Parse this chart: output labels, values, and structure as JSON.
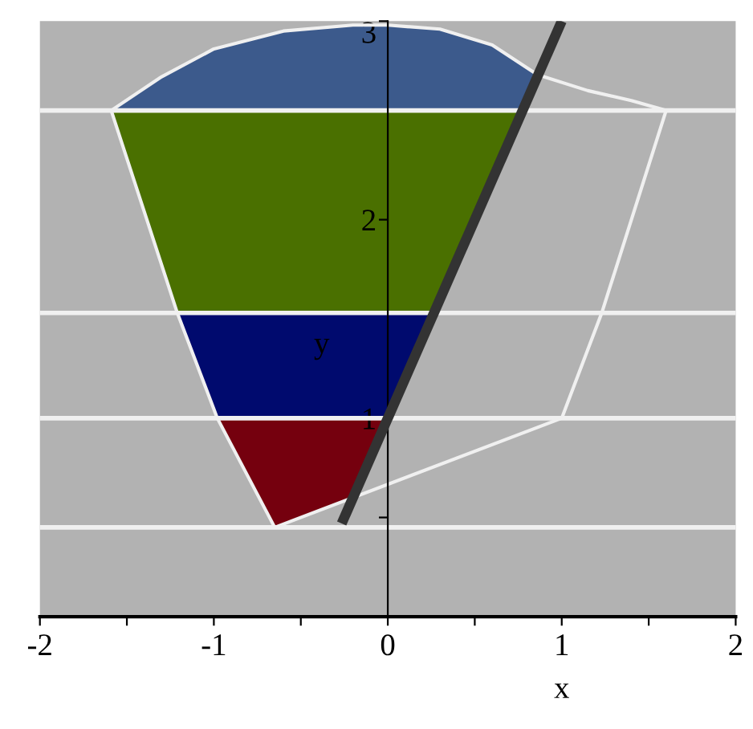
{
  "chart_data": {
    "type": "line",
    "xlabel": "x",
    "ylabel": "y",
    "xlim": [
      -2,
      2
    ],
    "ylim": [
      0,
      3
    ],
    "xticks": [
      -2,
      {
        "value": -1.5,
        "label": null
      },
      -1,
      {
        "value": -0.5,
        "label": null
      },
      0,
      {
        "value": 0.5,
        "label": null
      },
      1,
      {
        "value": 1.5,
        "label": null
      },
      2
    ],
    "yticks": [
      {
        "value": 0.5,
        "label": null
      },
      1,
      2,
      3
    ],
    "grid": false,
    "legend": false,
    "ref_lines": [
      {
        "axis": "y",
        "value": 0.45,
        "color": "#f0f0f0"
      },
      {
        "axis": "y",
        "value": 1,
        "color": "#f0f0f0"
      },
      {
        "axis": "y",
        "value": 1.53,
        "color": "#f0f0f0"
      },
      {
        "axis": "y",
        "value": 2.55,
        "color": "#f0f0f0"
      }
    ],
    "series": [
      {
        "type": "area",
        "color": "#75000e",
        "x": [
          -0.65,
          -0.2,
          0,
          -0.98
        ],
        "values": [
          0.45,
          0.6,
          1,
          1
        ]
      },
      {
        "type": "area",
        "color": "#000a6e",
        "x": [
          -0.98,
          0,
          0.265,
          -1.21
        ],
        "values": [
          1,
          1,
          1.53,
          1.53
        ]
      },
      {
        "type": "area",
        "color": "#4a7000",
        "x": [
          -1.21,
          0.265,
          0.775,
          -1.59
        ],
        "values": [
          1.53,
          1.53,
          2.55,
          2.55
        ]
      },
      {
        "type": "area",
        "color": "#3c5a8c",
        "x": [
          -1.59,
          0.775,
          0.86,
          0.6,
          0.3,
          0,
          -0.2,
          -0.6,
          -1.0,
          -1.3
        ],
        "values": [
          2.55,
          2.55,
          2.73,
          2.88,
          2.96,
          2.98,
          2.98,
          2.95,
          2.86,
          2.72
        ]
      },
      {
        "color": "#f0f0f0",
        "x": [
          -1.59,
          -1.21,
          -0.98,
          -0.65
        ],
        "values": [
          2.55,
          1.53,
          1,
          0.45
        ]
      },
      {
        "color": "#f0f0f0",
        "x": [
          -0.65,
          1.0
        ],
        "values": [
          0.45,
          1.0
        ]
      },
      {
        "color": "#f0f0f0",
        "x": [
          1.0,
          1.23,
          1.6
        ],
        "values": [
          1.0,
          1.53,
          2.55
        ]
      },
      {
        "color": "#f0f0f0",
        "x": [
          -1.59,
          -1.3,
          -1.0,
          -0.6,
          -0.2,
          0,
          0.3,
          0.6,
          0.86,
          1.15,
          1.4,
          1.6
        ],
        "values": [
          2.55,
          2.72,
          2.86,
          2.95,
          2.98,
          2.98,
          2.96,
          2.88,
          2.73,
          2.65,
          2.6,
          2.55
        ]
      },
      {
        "color": "#333333",
        "x": [
          -0.265,
          1.0
        ],
        "values": [
          0.47,
          3.0
        ]
      }
    ]
  }
}
